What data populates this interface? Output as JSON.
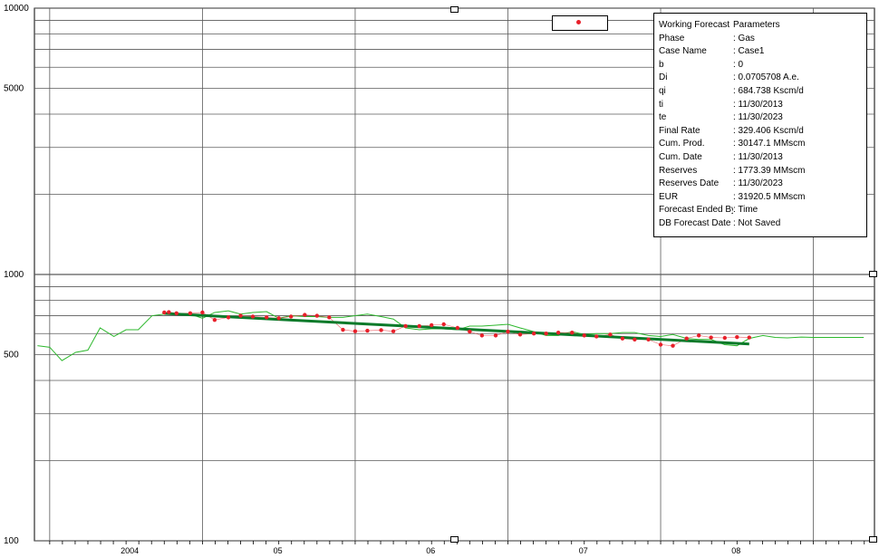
{
  "legend": {
    "marker_color": "#e8202a"
  },
  "parameters": {
    "title_key": "Working Forecast",
    "title_value": "Parameters",
    "rows": [
      {
        "key": "Phase",
        "value": ": Gas"
      },
      {
        "key": "Case Name",
        "value": ": Case1"
      },
      {
        "key": "b",
        "value": ": 0"
      },
      {
        "key": "Di",
        "value": ": 0.0705708 A.e."
      },
      {
        "key": "qi",
        "value": ": 684.738 Kscm/d"
      },
      {
        "key": "ti",
        "value": ": 11/30/2013"
      },
      {
        "key": "te",
        "value": ": 11/30/2023"
      },
      {
        "key": "Final Rate",
        "value": ": 329.406 Kscm/d"
      },
      {
        "key": "Cum. Prod.",
        "value": ": 30147.1 MMscm"
      },
      {
        "key": "Cum. Date",
        "value": ": 11/30/2013"
      },
      {
        "key": "Reserves",
        "value": ": 1773.39 MMscm"
      },
      {
        "key": "Reserves Date",
        "value": ": 11/30/2023"
      },
      {
        "key": "EUR",
        "value": ": 31920.5 MMscm"
      },
      {
        "key": "Forecast Ended By",
        "value": ": Time"
      },
      {
        "key": "DB Forecast Date",
        "value": ": Not Saved"
      }
    ]
  },
  "chart_data": {
    "type": "line",
    "y_scale": "log",
    "ylim": [
      100,
      10000
    ],
    "y_tick_labels": [
      "10000",
      "5000",
      "1000",
      "500",
      "100"
    ],
    "x_tick_labels": [
      "2004",
      "05",
      "06",
      "07",
      "08"
    ],
    "xlim": [
      2003.9,
      2009.4
    ],
    "grid": true,
    "colors": {
      "history": "#2db82d",
      "forecast": "#0a7a2a",
      "points": "#e8202a",
      "grid": "#5a5a5a"
    },
    "series": [
      {
        "type": "line",
        "x": [
          2003.92,
          2004.0,
          2004.08,
          2004.17,
          2004.25,
          2004.33,
          2004.42,
          2004.5,
          2004.58,
          2004.67,
          2004.75,
          2004.83,
          2004.92,
          2005.0,
          2005.08,
          2005.17,
          2005.25,
          2005.33,
          2005.42,
          2005.5,
          2005.58,
          2005.67,
          2005.75,
          2005.83,
          2005.92,
          2006.0,
          2006.08,
          2006.17,
          2006.25,
          2006.33,
          2006.42,
          2006.5,
          2006.58,
          2006.67,
          2006.75,
          2006.83,
          2006.92,
          2007.0,
          2007.08,
          2007.17,
          2007.25,
          2007.33,
          2007.42,
          2007.5,
          2007.58,
          2007.67,
          2007.75,
          2007.83,
          2007.92,
          2008.0,
          2008.08,
          2008.17,
          2008.25,
          2008.33,
          2008.42,
          2008.5,
          2008.58,
          2008.67,
          2008.75,
          2008.83,
          2008.92,
          2009.0,
          2009.08,
          2009.17,
          2009.25,
          2009.33
        ],
        "y": [
          540,
          533,
          475,
          510,
          520,
          630,
          585,
          620,
          620,
          700,
          710,
          710,
          710,
          685,
          720,
          730,
          710,
          720,
          725,
          685,
          700,
          695,
          695,
          690,
          690,
          700,
          710,
          695,
          680,
          630,
          620,
          625,
          625,
          620,
          640,
          640,
          645,
          650,
          630,
          610,
          590,
          590,
          610,
          595,
          600,
          600,
          605,
          605,
          590,
          585,
          595,
          575,
          570,
          570,
          545,
          540,
          575,
          590,
          580,
          578,
          582,
          580,
          580,
          580,
          580,
          580
        ]
      },
      {
        "type": "scatter",
        "x": [
          2004.75,
          2004.78,
          2004.83,
          2004.92,
          2005.0,
          2005.08,
          2005.17,
          2005.25,
          2005.33,
          2005.42,
          2005.5,
          2005.58,
          2005.67,
          2005.75,
          2005.83,
          2005.92,
          2006.0,
          2006.08,
          2006.17,
          2006.25,
          2006.33,
          2006.42,
          2006.5,
          2006.58,
          2006.67,
          2006.75,
          2006.83,
          2006.92,
          2007.0,
          2007.08,
          2007.17,
          2007.25,
          2007.33,
          2007.42,
          2007.5,
          2007.58,
          2007.67,
          2007.75,
          2007.83,
          2007.92,
          2008.0,
          2008.08,
          2008.17,
          2008.25,
          2008.33,
          2008.42,
          2008.5,
          2008.58
        ],
        "y": [
          720,
          722,
          715,
          715,
          720,
          675,
          690,
          700,
          695,
          690,
          685,
          695,
          705,
          700,
          690,
          620,
          612,
          615,
          618,
          612,
          640,
          640,
          645,
          650,
          630,
          610,
          590,
          590,
          610,
          595,
          600,
          600,
          605,
          605,
          590,
          585,
          595,
          575,
          570,
          570,
          545,
          540,
          575,
          590,
          580,
          578,
          582,
          580
        ]
      },
      {
        "type": "line",
        "x": [
          2004.75,
          2008.58
        ],
        "y": [
          714,
          548
        ]
      }
    ]
  }
}
